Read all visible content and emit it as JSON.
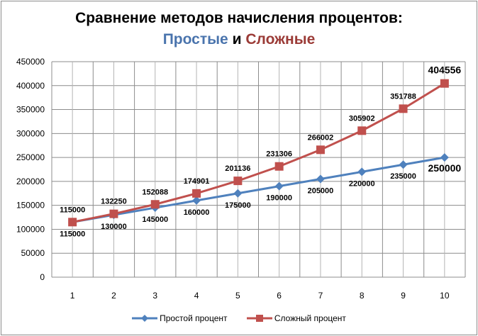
{
  "chart_data": {
    "type": "line",
    "title": "Сравнение методов начисления процентов:",
    "subtitle": {
      "part1": "Простые",
      "part2": " и ",
      "part3": "Сложные"
    },
    "xlabel": "",
    "ylabel": "",
    "categories": [
      "1",
      "2",
      "3",
      "4",
      "5",
      "6",
      "7",
      "8",
      "9",
      "10"
    ],
    "ylim": [
      0,
      450000
    ],
    "yticks": [
      "0",
      "50000",
      "100000",
      "150000",
      "200000",
      "250000",
      "300000",
      "350000",
      "400000",
      "450000"
    ],
    "grid": true,
    "legend_position": "bottom",
    "series": [
      {
        "name": "Простой процент",
        "color": "#4f81bd",
        "marker": "diamond",
        "values": [
          115000,
          130000,
          145000,
          160000,
          175000,
          190000,
          205000,
          220000,
          235000,
          250000
        ]
      },
      {
        "name": "Сложный процент",
        "color": "#c0504d",
        "marker": "square",
        "values": [
          115000,
          132250,
          152088,
          174901,
          201136,
          231306,
          266002,
          305902,
          351788,
          404556
        ]
      }
    ]
  }
}
